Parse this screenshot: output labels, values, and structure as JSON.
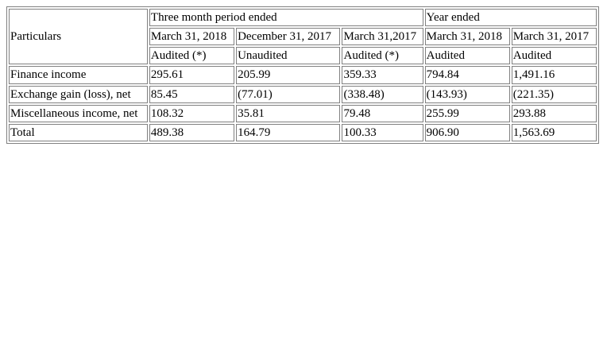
{
  "table": {
    "particulars_label": "Particulars",
    "group_headers": [
      "Three month period ended",
      "Year ended"
    ],
    "period_headers": [
      "March 31, 2018",
      "December 31, 2017",
      "March 31,2017",
      "March 31, 2018",
      "March 31, 2017"
    ],
    "audit_headers": [
      "Audited (*)",
      "Unaudited",
      "Audited (*)",
      "Audited",
      "Audited"
    ],
    "rows": [
      {
        "label": "Finance income",
        "values": [
          "295.61",
          "205.99",
          "359.33",
          "794.84",
          "1,491.16"
        ]
      },
      {
        "label": "Exchange gain (loss), net",
        "values": [
          "85.45",
          "(77.01)",
          "(338.48)",
          "(143.93)",
          "(221.35)"
        ]
      },
      {
        "label": "Miscellaneous income, net",
        "values": [
          "108.32",
          "35.81",
          "79.48",
          "255.99",
          "293.88"
        ]
      },
      {
        "label": "Total",
        "values": [
          "489.38",
          "164.79",
          "100.33",
          "906.90",
          "1,563.69"
        ]
      }
    ]
  }
}
